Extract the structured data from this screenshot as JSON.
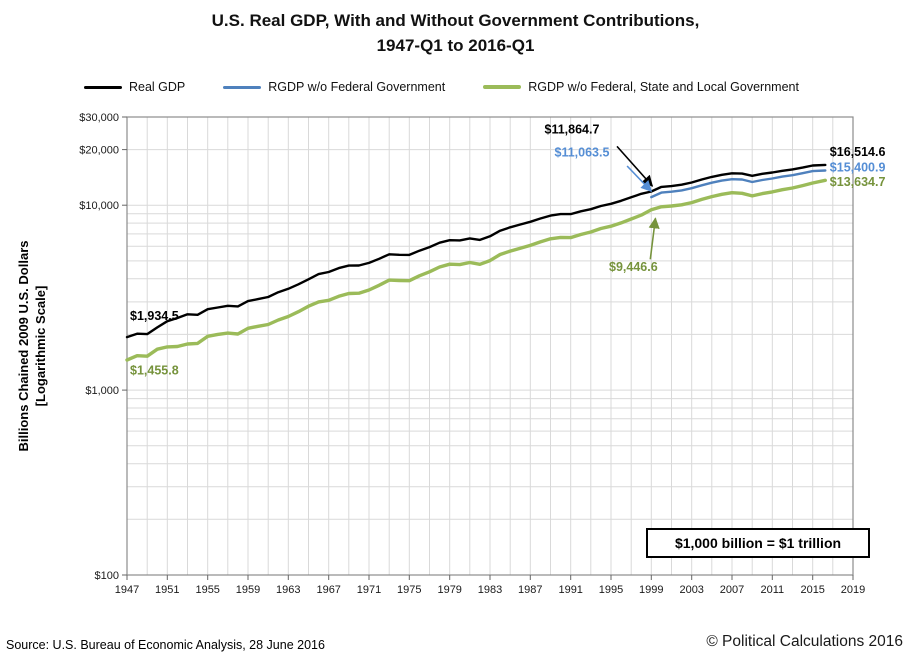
{
  "page": {
    "title_line1": "U.S. Real GDP, With and Without Government Contributions,",
    "title_line2": "1947-Q1 to 2016-Q1",
    "source": "Source: U.S. Bureau of Economic Analysis, 28 June 2016",
    "copyright": "© Political Calculations 2016",
    "note_box": "$1,000 billion = $1 trillion"
  },
  "legend": [
    {
      "label": "Real GDP",
      "color": "#000000",
      "thickness": 3
    },
    {
      "label": "RGDP w/o Federal Government",
      "color": "#4f81bd",
      "thickness": 3
    },
    {
      "label": "RGDP w/o Federal, State and Local Government",
      "color": "#9bbb59",
      "thickness": 4
    }
  ],
  "chart_data": {
    "type": "line",
    "title": "U.S. Real GDP, With and Without Government Contributions, 1947-Q1 to 2016-Q1",
    "xlabel": "",
    "ylabel": "Billions Chained 2009 U.S. Dollars [Logarithmic Scale]",
    "ylabel_line1": "Billions Chained 2009 U.S. Dollars",
    "ylabel_line2": "[Logarithmic Scale]",
    "y_scale": "log",
    "grid": true,
    "legend_position": "top",
    "ylim": [
      100,
      30000
    ],
    "xlim": [
      1947,
      2019
    ],
    "x_ticks": [
      1947,
      1951,
      1955,
      1959,
      1963,
      1967,
      1971,
      1975,
      1979,
      1983,
      1987,
      1991,
      1995,
      1999,
      2003,
      2007,
      2011,
      2015,
      2019
    ],
    "y_ticks": [
      {
        "value": 100,
        "label": "$100"
      },
      {
        "value": 1000,
        "label": "$1,000"
      },
      {
        "value": 10000,
        "label": "$10,000"
      },
      {
        "value": 20000,
        "label": "$20,000"
      },
      {
        "value": 30000,
        "label": "$30,000"
      }
    ],
    "series": [
      {
        "name": "Real GDP",
        "color": "#000000",
        "width": 2.4,
        "x": [
          1947,
          1948,
          1949,
          1950,
          1951,
          1952,
          1953,
          1954,
          1955,
          1956,
          1957,
          1958,
          1959,
          1960,
          1961,
          1962,
          1963,
          1964,
          1965,
          1966,
          1967,
          1968,
          1969,
          1970,
          1971,
          1972,
          1973,
          1974,
          1975,
          1976,
          1977,
          1978,
          1979,
          1980,
          1981,
          1982,
          1983,
          1984,
          1985,
          1986,
          1987,
          1988,
          1989,
          1990,
          1991,
          1992,
          1993,
          1994,
          1995,
          1996,
          1997,
          1998,
          1999,
          2000,
          2001,
          2002,
          2003,
          2004,
          2005,
          2006,
          2007,
          2008,
          2009,
          2010,
          2011,
          2012,
          2013,
          2014,
          2015,
          2016.25
        ],
        "y": [
          1934.5,
          2020,
          2008,
          2184,
          2360,
          2456,
          2571,
          2556,
          2740,
          2797,
          2856,
          2835,
          3031,
          3108,
          3188,
          3383,
          3530,
          3734,
          3977,
          4239,
          4355,
          4569,
          4713,
          4722,
          4877,
          5134,
          5424,
          5396,
          5385,
          5675,
          5937,
          6267,
          6466,
          6450,
          6618,
          6491,
          6792,
          7285,
          7594,
          7861,
          8133,
          8475,
          8786,
          8955,
          8948,
          9267,
          9521,
          9905,
          10175,
          10561,
          11035,
          11526,
          11864.7,
          12560,
          12682,
          12909,
          13271,
          13774,
          14234,
          14614,
          14874,
          14830,
          14419,
          14779,
          15021,
          15355,
          15612,
          15982,
          16397,
          16514.6
        ],
        "start_value": 1934.5,
        "end_value": 16514.6
      },
      {
        "name": "RGDP w/o Federal Government",
        "color": "#4f81bd",
        "width": 2.4,
        "x": [
          1999,
          2000,
          2001,
          2002,
          2003,
          2004,
          2005,
          2006,
          2007,
          2008,
          2009,
          2010,
          2011,
          2012,
          2013,
          2014,
          2015,
          2016.25
        ],
        "y": [
          11063.5,
          11700,
          11830,
          12030,
          12360,
          12820,
          13240,
          13590,
          13830,
          13770,
          13350,
          13690,
          13940,
          14280,
          14540,
          14890,
          15290,
          15400.9
        ],
        "start_value": 11063.5,
        "end_value": 15400.9
      },
      {
        "name": "RGDP w/o Federal, State and Local Government",
        "color": "#9bbb59",
        "width": 3.4,
        "x": [
          1947,
          1948,
          1949,
          1950,
          1951,
          1952,
          1953,
          1954,
          1955,
          1956,
          1957,
          1958,
          1959,
          1960,
          1961,
          1962,
          1963,
          1964,
          1965,
          1966,
          1967,
          1968,
          1969,
          1970,
          1971,
          1972,
          1973,
          1974,
          1975,
          1976,
          1977,
          1978,
          1979,
          1980,
          1981,
          1982,
          1983,
          1984,
          1985,
          1986,
          1987,
          1988,
          1989,
          1990,
          1991,
          1992,
          1993,
          1994,
          1995,
          1996,
          1997,
          1998,
          1999,
          2000,
          2001,
          2002,
          2003,
          2004,
          2005,
          2006,
          2007,
          2008,
          2009,
          2010,
          2011,
          2012,
          2013,
          2014,
          2015,
          2016.25
        ],
        "y": [
          1455.8,
          1535,
          1526,
          1665,
          1713,
          1722,
          1775,
          1790,
          1955,
          2000,
          2035,
          2010,
          2160,
          2215,
          2265,
          2395,
          2500,
          2655,
          2845,
          3000,
          3060,
          3215,
          3330,
          3345,
          3480,
          3690,
          3935,
          3915,
          3905,
          4150,
          4365,
          4635,
          4795,
          4775,
          4900,
          4790,
          5015,
          5415,
          5645,
          5855,
          6060,
          6330,
          6580,
          6700,
          6680,
          6940,
          7160,
          7480,
          7705,
          8025,
          8425,
          8845,
          9446.6,
          9810,
          9905,
          10050,
          10330,
          10750,
          11130,
          11450,
          11680,
          11600,
          11230,
          11550,
          11800,
          12130,
          12390,
          12760,
          13180,
          13634.7
        ],
        "start_value": 1455.8,
        "end_value": 13634.7
      }
    ],
    "annotations": [
      {
        "text": "$1,934.5",
        "color": "#000000",
        "label_x": 1947.3,
        "label_y": 2400,
        "align": "start",
        "arrow": false
      },
      {
        "text": "$1,455.8",
        "color": "#76933c",
        "label_x": 1947.3,
        "label_y": 1215,
        "align": "start",
        "arrow": false
      },
      {
        "text": "$11,864.7",
        "color": "#000000",
        "label_x": 1988.4,
        "label_y": 24500,
        "align": "start",
        "arrow": true,
        "arrow_from_x": 1995.6,
        "arrow_from_y": 20800,
        "arrow_to_x": 1999.1,
        "arrow_to_y": 12700
      },
      {
        "text": "$11,063.5",
        "color": "#558ed5",
        "label_x": 1989.4,
        "label_y": 18300,
        "align": "start",
        "arrow": true,
        "arrow_from_x": 1996.6,
        "arrow_from_y": 16300,
        "arrow_to_x": 1999.0,
        "arrow_to_y": 11900
      },
      {
        "text": "$9,446.6",
        "color": "#76933c",
        "label_x": 1994.8,
        "label_y": 4400,
        "align": "start",
        "arrow": true,
        "arrow_from_x": 1998.9,
        "arrow_from_y": 5100,
        "arrow_to_x": 1999.4,
        "arrow_to_y": 8500
      },
      {
        "text": "$16,514.6",
        "color": "#000000",
        "label_x": 2016.7,
        "label_y": 18500,
        "align": "start",
        "arrow": false
      },
      {
        "text": "$15,400.9",
        "color": "#558ed5",
        "label_x": 2016.7,
        "label_y": 15200,
        "align": "start",
        "arrow": false
      },
      {
        "text": "$13,634.7",
        "color": "#76933c",
        "label_x": 2016.7,
        "label_y": 12700,
        "align": "start",
        "arrow": false
      }
    ]
  }
}
